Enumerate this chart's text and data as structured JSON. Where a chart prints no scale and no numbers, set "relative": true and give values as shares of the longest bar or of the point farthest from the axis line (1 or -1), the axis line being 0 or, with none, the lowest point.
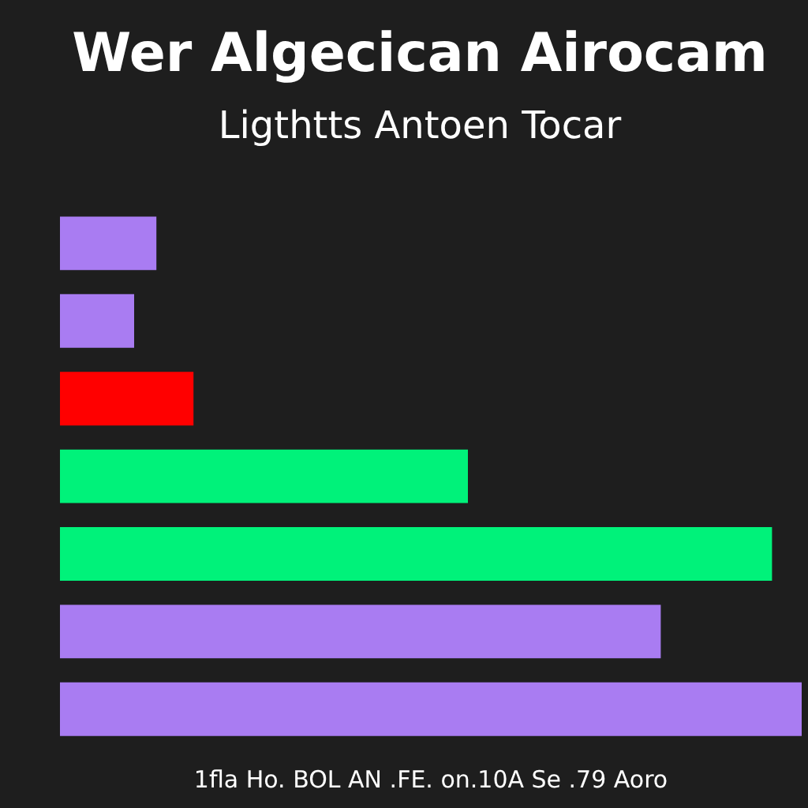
{
  "chart_data": {
    "type": "bar",
    "orientation": "horizontal",
    "relative": true,
    "title": "Wer Algecican Airocam",
    "subtitle": "Ligthtts Antoen Tocar",
    "xlabel": "1fla Ho. BOL AN .FE. on.10A Se .79 Aoro",
    "categories": [
      null,
      null,
      null,
      null,
      null,
      null,
      null
    ],
    "values": [
      0.13,
      0.1,
      0.18,
      0.55,
      0.96,
      0.81,
      1
    ],
    "colors": [
      "#a97cf2",
      "#a97cf2",
      "#ff0000",
      "#00f27a",
      "#00f27a",
      "#a97cf2",
      "#a97cf2"
    ],
    "grid": false,
    "legend": false
  }
}
